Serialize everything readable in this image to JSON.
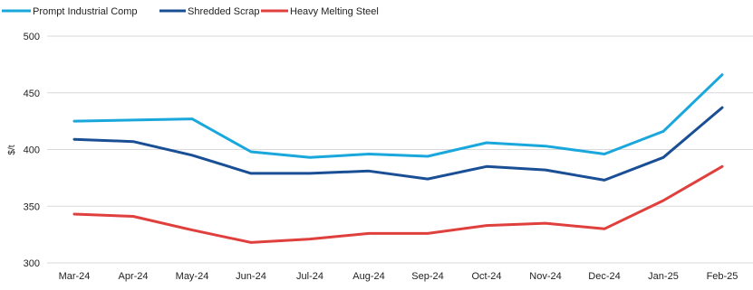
{
  "chart_data": {
    "type": "line",
    "title": "",
    "xlabel": "",
    "ylabel": "$/t",
    "ylim": [
      300,
      500
    ],
    "yticks": [
      300,
      350,
      400,
      450,
      500
    ],
    "grid": true,
    "legend_position": "top-left",
    "categories": [
      "Mar-24",
      "Apr-24",
      "May-24",
      "Jun-24",
      "Jul-24",
      "Aug-24",
      "Sep-24",
      "Oct-24",
      "Nov-24",
      "Dec-24",
      "Jan-25",
      "Feb-25"
    ],
    "series": [
      {
        "name": "Prompt Industrial Comp",
        "color": "#1aa7dc",
        "values": [
          425,
          426,
          427,
          398,
          393,
          396,
          394,
          406,
          403,
          396,
          416,
          466
        ]
      },
      {
        "name": "Shredded Scrap",
        "color": "#1a4f96",
        "values": [
          409,
          407,
          395,
          379,
          379,
          381,
          374,
          385,
          382,
          373,
          393,
          437
        ]
      },
      {
        "name": "Heavy Melting Steel",
        "color": "#e0403d",
        "values": [
          343,
          341,
          329,
          318,
          321,
          326,
          326,
          333,
          335,
          330,
          355,
          385
        ]
      }
    ]
  }
}
